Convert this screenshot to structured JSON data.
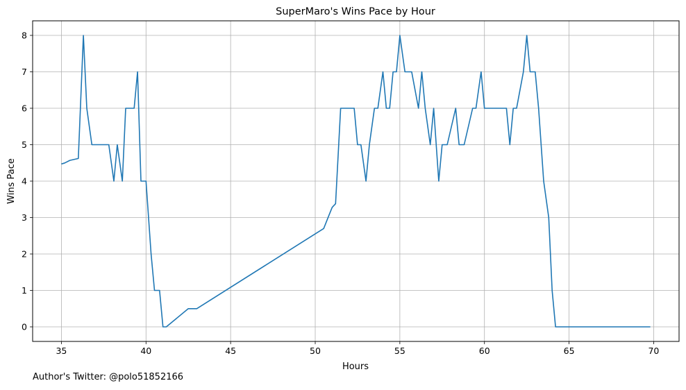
{
  "footer_text": "Author's Twitter: @polo51852166",
  "chart_data": {
    "type": "line",
    "title": "SuperMaro's Wins Pace by Hour",
    "xlabel": "Hours",
    "ylabel": "Wins Pace",
    "xlim": [
      33.3,
      71.5
    ],
    "ylim": [
      -0.4,
      8.4
    ],
    "xticks": [
      35,
      40,
      45,
      50,
      55,
      60,
      65,
      70
    ],
    "yticks": [
      0,
      1,
      2,
      3,
      4,
      5,
      6,
      7,
      8
    ],
    "grid": true,
    "line_color": "#1f77b4",
    "series": [
      {
        "x": [
          35.0,
          35.2,
          35.5,
          36.0,
          36.3,
          36.5,
          36.8,
          37.8,
          38.1,
          38.3,
          38.6,
          38.8,
          39.3,
          39.5,
          39.7,
          40.0,
          40.3,
          40.5,
          40.8,
          41.0,
          41.2,
          42.5,
          43.0,
          50.5,
          50.8,
          51.0,
          51.2,
          51.5,
          52.3,
          52.5,
          52.7,
          53.0,
          53.2,
          53.5,
          53.7,
          54.0,
          54.2,
          54.4,
          54.6,
          54.8,
          55.0,
          55.3,
          55.5,
          55.7,
          56.1,
          56.3,
          56.5,
          56.8,
          57.0,
          57.3,
          57.5,
          57.8,
          58.3,
          58.5,
          58.8,
          59.3,
          59.5,
          59.8,
          60.0,
          60.3,
          60.5,
          61.3,
          61.5,
          61.7,
          61.9,
          62.3,
          62.5,
          62.7,
          63.0,
          63.2,
          63.5,
          63.8,
          64.0,
          64.2,
          69.8
        ],
        "y": [
          4.47,
          4.5,
          4.57,
          4.62,
          8,
          6,
          5,
          5,
          4,
          5,
          4,
          6,
          6,
          7,
          4,
          4,
          2,
          1,
          1,
          0,
          0,
          0.5,
          0.5,
          2.7,
          3.05,
          3.28,
          3.38,
          6,
          6,
          5,
          5,
          4,
          5,
          6,
          6,
          7,
          6,
          6,
          7,
          7,
          8,
          7,
          7,
          7,
          6,
          7,
          6,
          5,
          6,
          4,
          5,
          5,
          6,
          5,
          5,
          6,
          6,
          7,
          6,
          6,
          6,
          6,
          5,
          6,
          6,
          7,
          8,
          7,
          7,
          6,
          4,
          3,
          1,
          0,
          0
        ]
      }
    ]
  }
}
